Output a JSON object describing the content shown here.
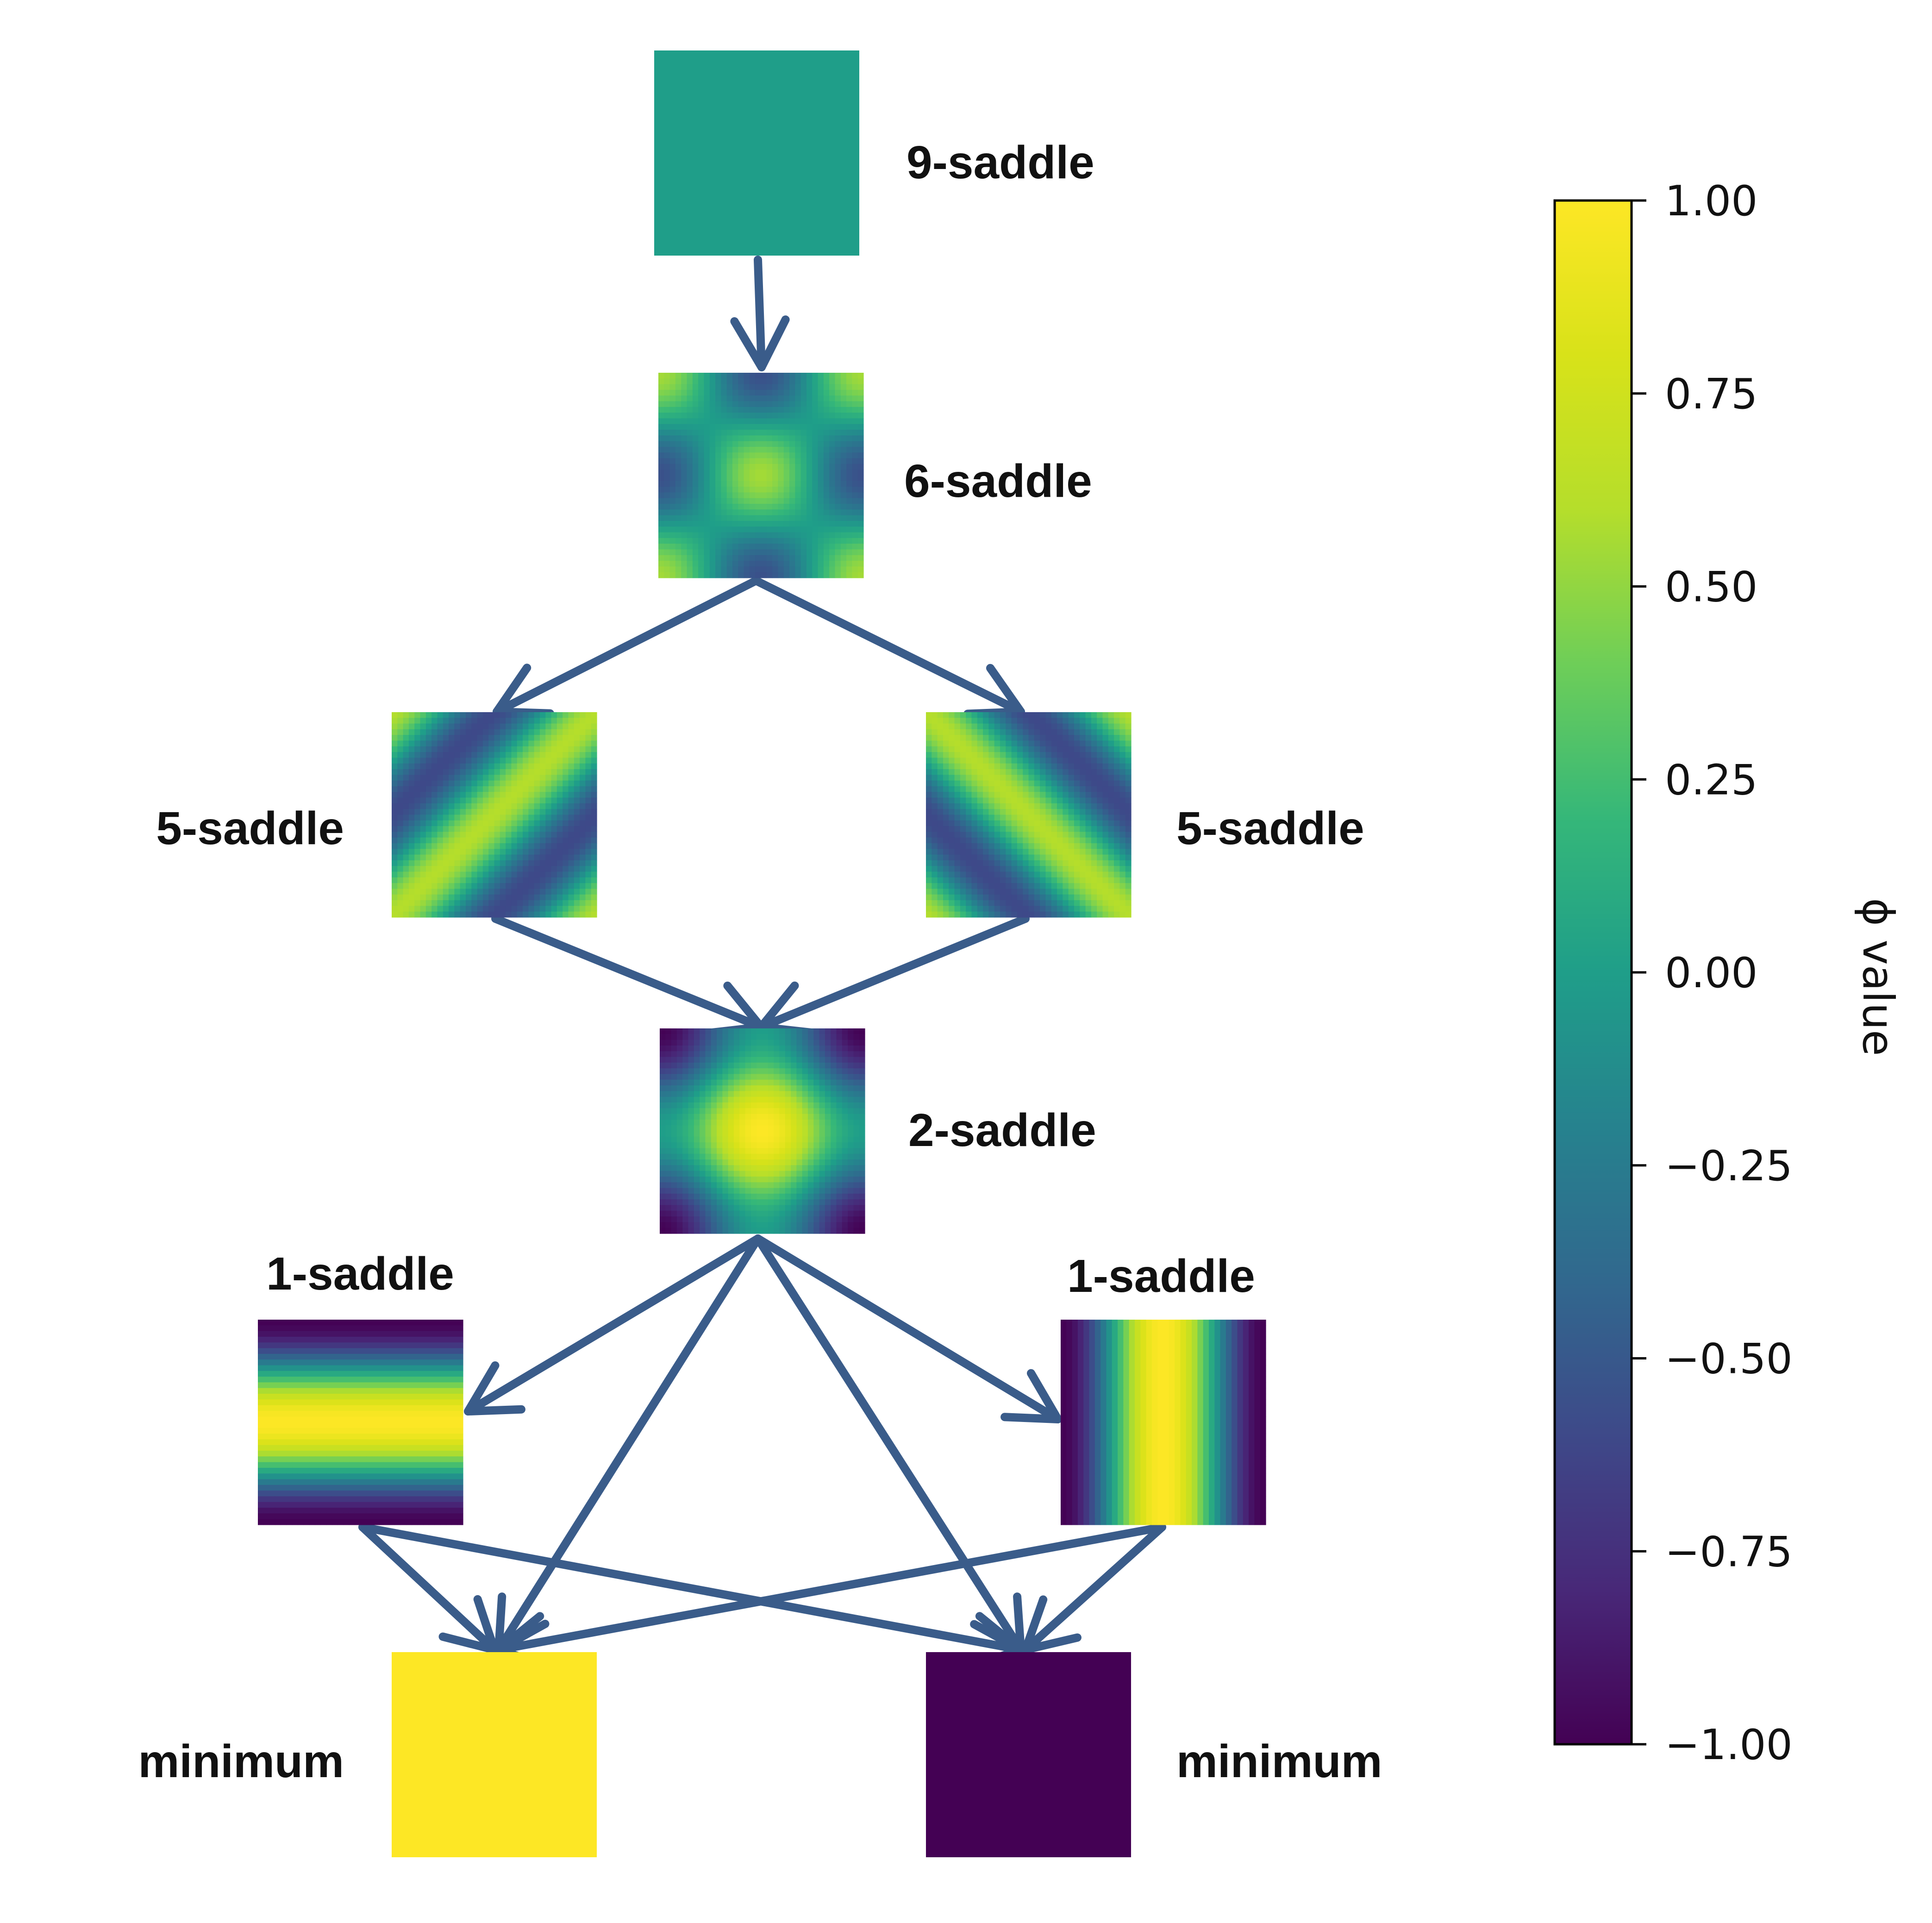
{
  "nodes": [
    {
      "id": "n9",
      "label": "9-saddle",
      "pattern": "uniform",
      "value": 0.0
    },
    {
      "id": "n6",
      "label": "6-saddle",
      "pattern": "checker"
    },
    {
      "id": "n5a",
      "label": "5-saddle",
      "pattern": "diag-a"
    },
    {
      "id": "n5b",
      "label": "5-saddle",
      "pattern": "diag-b"
    },
    {
      "id": "n2",
      "label": "2-saddle",
      "pattern": "diamond"
    },
    {
      "id": "n1a",
      "label": "1-saddle",
      "pattern": "horizontal"
    },
    {
      "id": "n1b",
      "label": "1-saddle",
      "pattern": "vertical"
    },
    {
      "id": "nma",
      "label": "minimum",
      "pattern": "uniform",
      "value": 1.0
    },
    {
      "id": "nmb",
      "label": "minimum",
      "pattern": "uniform",
      "value": -1.0
    }
  ],
  "edges": [
    [
      "n9",
      "n6"
    ],
    [
      "n6",
      "n5a"
    ],
    [
      "n6",
      "n5b"
    ],
    [
      "n5a",
      "n2"
    ],
    [
      "n5b",
      "n2"
    ],
    [
      "n2",
      "n1a"
    ],
    [
      "n2",
      "n1b"
    ],
    [
      "n2",
      "nma"
    ],
    [
      "n2",
      "nmb"
    ],
    [
      "n1a",
      "nma"
    ],
    [
      "n1a",
      "nmb"
    ],
    [
      "n1b",
      "nma"
    ],
    [
      "n1b",
      "nmb"
    ]
  ],
  "colorbar": {
    "label": "ϕ value",
    "colormap": "viridis",
    "range": [
      -1.0,
      1.0
    ],
    "ticks": [
      "1.00",
      "0.75",
      "0.50",
      "0.25",
      "0.00",
      "−0.25",
      "−0.50",
      "−0.75",
      "−1.00"
    ]
  },
  "colors": {
    "edge": "#3a5c8a"
  }
}
